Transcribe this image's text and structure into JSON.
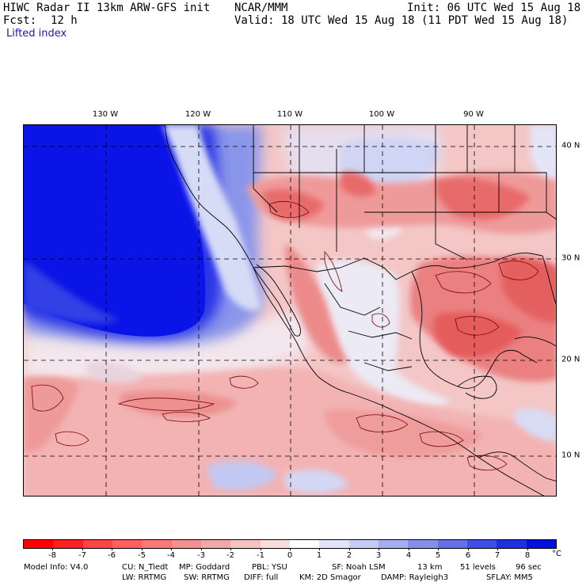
{
  "header": {
    "model_title": "HIWC Radar II 13km ARW-GFS init",
    "org": "NCAR/MMM",
    "init": "Init: 06 UTC Wed 15 Aug 18",
    "fcst_label": "Fcst:",
    "fcst_value": "12 h",
    "valid": "Valid: 18 UTC Wed 15 Aug 18 (11 PDT Wed 15 Aug 18)",
    "field": "Lifted index"
  },
  "map": {
    "lon_labels": [
      "130 W",
      "120 W",
      "110 W",
      "100 W",
      "90 W"
    ],
    "lat_labels": [
      "40 N",
      "30 N",
      "20 N",
      "10 N"
    ],
    "colors": {
      "deep_blue": "#0a14e6",
      "mid_blue": "#6a78e8",
      "light_blue": "#c7cdf2",
      "near_white": "#f3eef2",
      "light_pink": "#f4c2c2",
      "pink": "#ee9a9a",
      "red": "#e86a6a",
      "contour": "#7a0000"
    }
  },
  "colorbar": {
    "labels": [
      "-8",
      "-7",
      "-6",
      "-5",
      "-4",
      "-3",
      "-2",
      "-1",
      "0",
      "1",
      "2",
      "3",
      "4",
      "5",
      "6",
      "7",
      "8"
    ],
    "unit": "°C",
    "colors": [
      "#ff0000",
      "#ff2020",
      "#ff4545",
      "#fe6060",
      "#f97878",
      "#f59090",
      "#f3a8a8",
      "#f5c2c2",
      "#f9dcdc",
      "#ffffff",
      "#e2e4fa",
      "#c6cbf5",
      "#a6aeef",
      "#8590ea",
      "#6370e6",
      "#3f4ee4",
      "#1f2ee3",
      "#0010dd"
    ]
  },
  "model_info": {
    "line1": {
      "label": "Model Info: V4.0",
      "cu": "CU: N_Tiedt",
      "mp": "MP: Goddard",
      "pbl": "PBL: YSU",
      "sf": "SF: Noah LSM",
      "res": "13 km",
      "levels": "51 levels",
      "dt": "96 sec"
    },
    "line2": {
      "lw": "LW: RRTMG",
      "sw": "SW: RRTMG",
      "diff": "DIFF: full",
      "km": "KM: 2D Smagor",
      "damp": "DAMP: Rayleigh3",
      "sflay": "SFLAY: MM5"
    }
  }
}
